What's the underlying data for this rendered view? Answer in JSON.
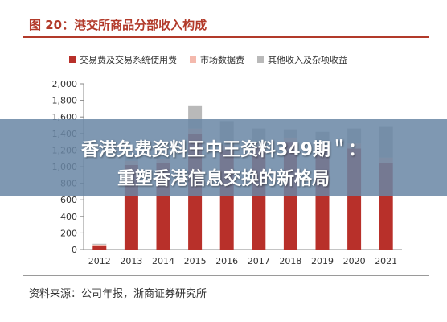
{
  "figure": {
    "title": "图 20：港交所商品分部收入构成",
    "source": "资料来源：公司年报，浙商证券研究所"
  },
  "overlay": {
    "line1": "香港免费资料王中王资料349期＂：",
    "line2": "重塑香港信息交换的新格局"
  },
  "colors": {
    "accent": "#b23a2a",
    "series_trading": "#b8302a",
    "series_market_data": "#f4b9ad",
    "series_other": "#b9b9b9",
    "banner": "#6886a4"
  },
  "chart_data": {
    "type": "bar",
    "stacked": true,
    "categories": [
      "2012",
      "2013",
      "2014",
      "2015",
      "2016",
      "2017",
      "2018",
      "2019",
      "2020",
      "2021"
    ],
    "series": [
      {
        "name": "交易费及交易系统使用费",
        "values": [
          40,
          1020,
          1040,
          1400,
          1200,
          1240,
          1290,
          1200,
          1220,
          1050
        ]
      },
      {
        "name": "市场数据费",
        "values": [
          20,
          50,
          50,
          60,
          60,
          60,
          60,
          60,
          60,
          60
        ]
      },
      {
        "name": "其他收入及杂项收益",
        "values": [
          10,
          90,
          60,
          270,
          290,
          160,
          100,
          160,
          180,
          370
        ]
      }
    ],
    "yticks": [
      "0",
      "200",
      "400",
      "600",
      "800",
      "1,000",
      "1,200",
      "1,400",
      "1,600",
      "1,800",
      "2,000"
    ],
    "ylim": [
      0,
      2000
    ],
    "grid": false,
    "legend": "top"
  }
}
